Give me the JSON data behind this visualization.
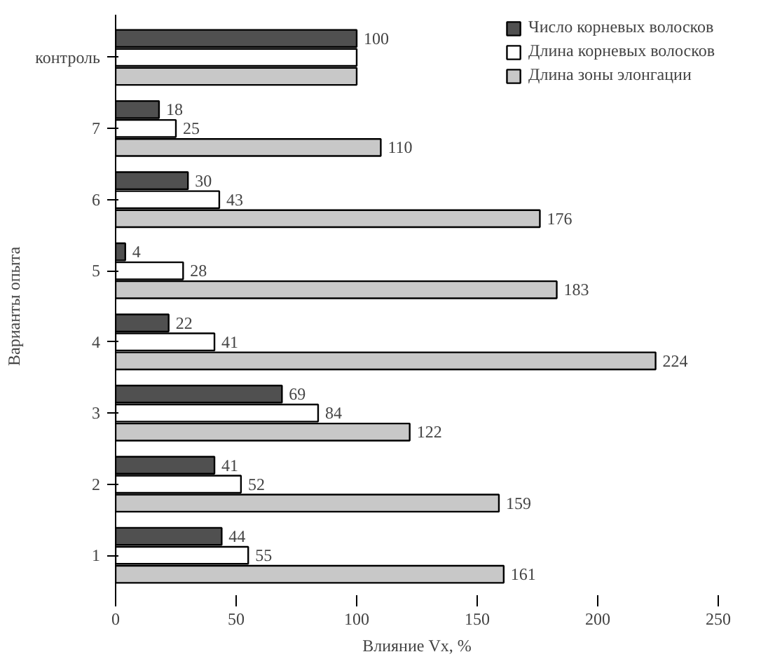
{
  "chart_data": {
    "type": "bar",
    "orientation": "horizontal",
    "xlabel": "Влияние Vx, %",
    "ylabel": "Варианты опыта",
    "categories": [
      "контроль",
      "7",
      "6",
      "5",
      "4",
      "3",
      "2",
      "1"
    ],
    "series": [
      {
        "name": "Число корневых волосков",
        "color": "#505050",
        "values": [
          100,
          18,
          30,
          4,
          22,
          69,
          41,
          44
        ],
        "value_labels": [
          "100",
          "18",
          "30",
          "4",
          "22",
          "69",
          "41",
          "44"
        ]
      },
      {
        "name": "Длина корневых волосков",
        "color": "#ffffff",
        "values": [
          100,
          25,
          43,
          28,
          41,
          84,
          52,
          55
        ],
        "value_labels": [
          null,
          "25",
          "43",
          "28",
          "41",
          "84",
          "52",
          "55"
        ]
      },
      {
        "name": "Длина зоны элонгации",
        "color": "#c8c8c8",
        "values": [
          100,
          110,
          176,
          183,
          224,
          122,
          159,
          161
        ],
        "value_labels": [
          null,
          "110",
          "176",
          "183",
          "224",
          "122",
          "159",
          "161"
        ]
      }
    ],
    "xlim": [
      0,
      250
    ],
    "xticks": [
      0,
      50,
      100,
      150,
      200,
      250
    ],
    "grid": false,
    "legend": "top right"
  }
}
